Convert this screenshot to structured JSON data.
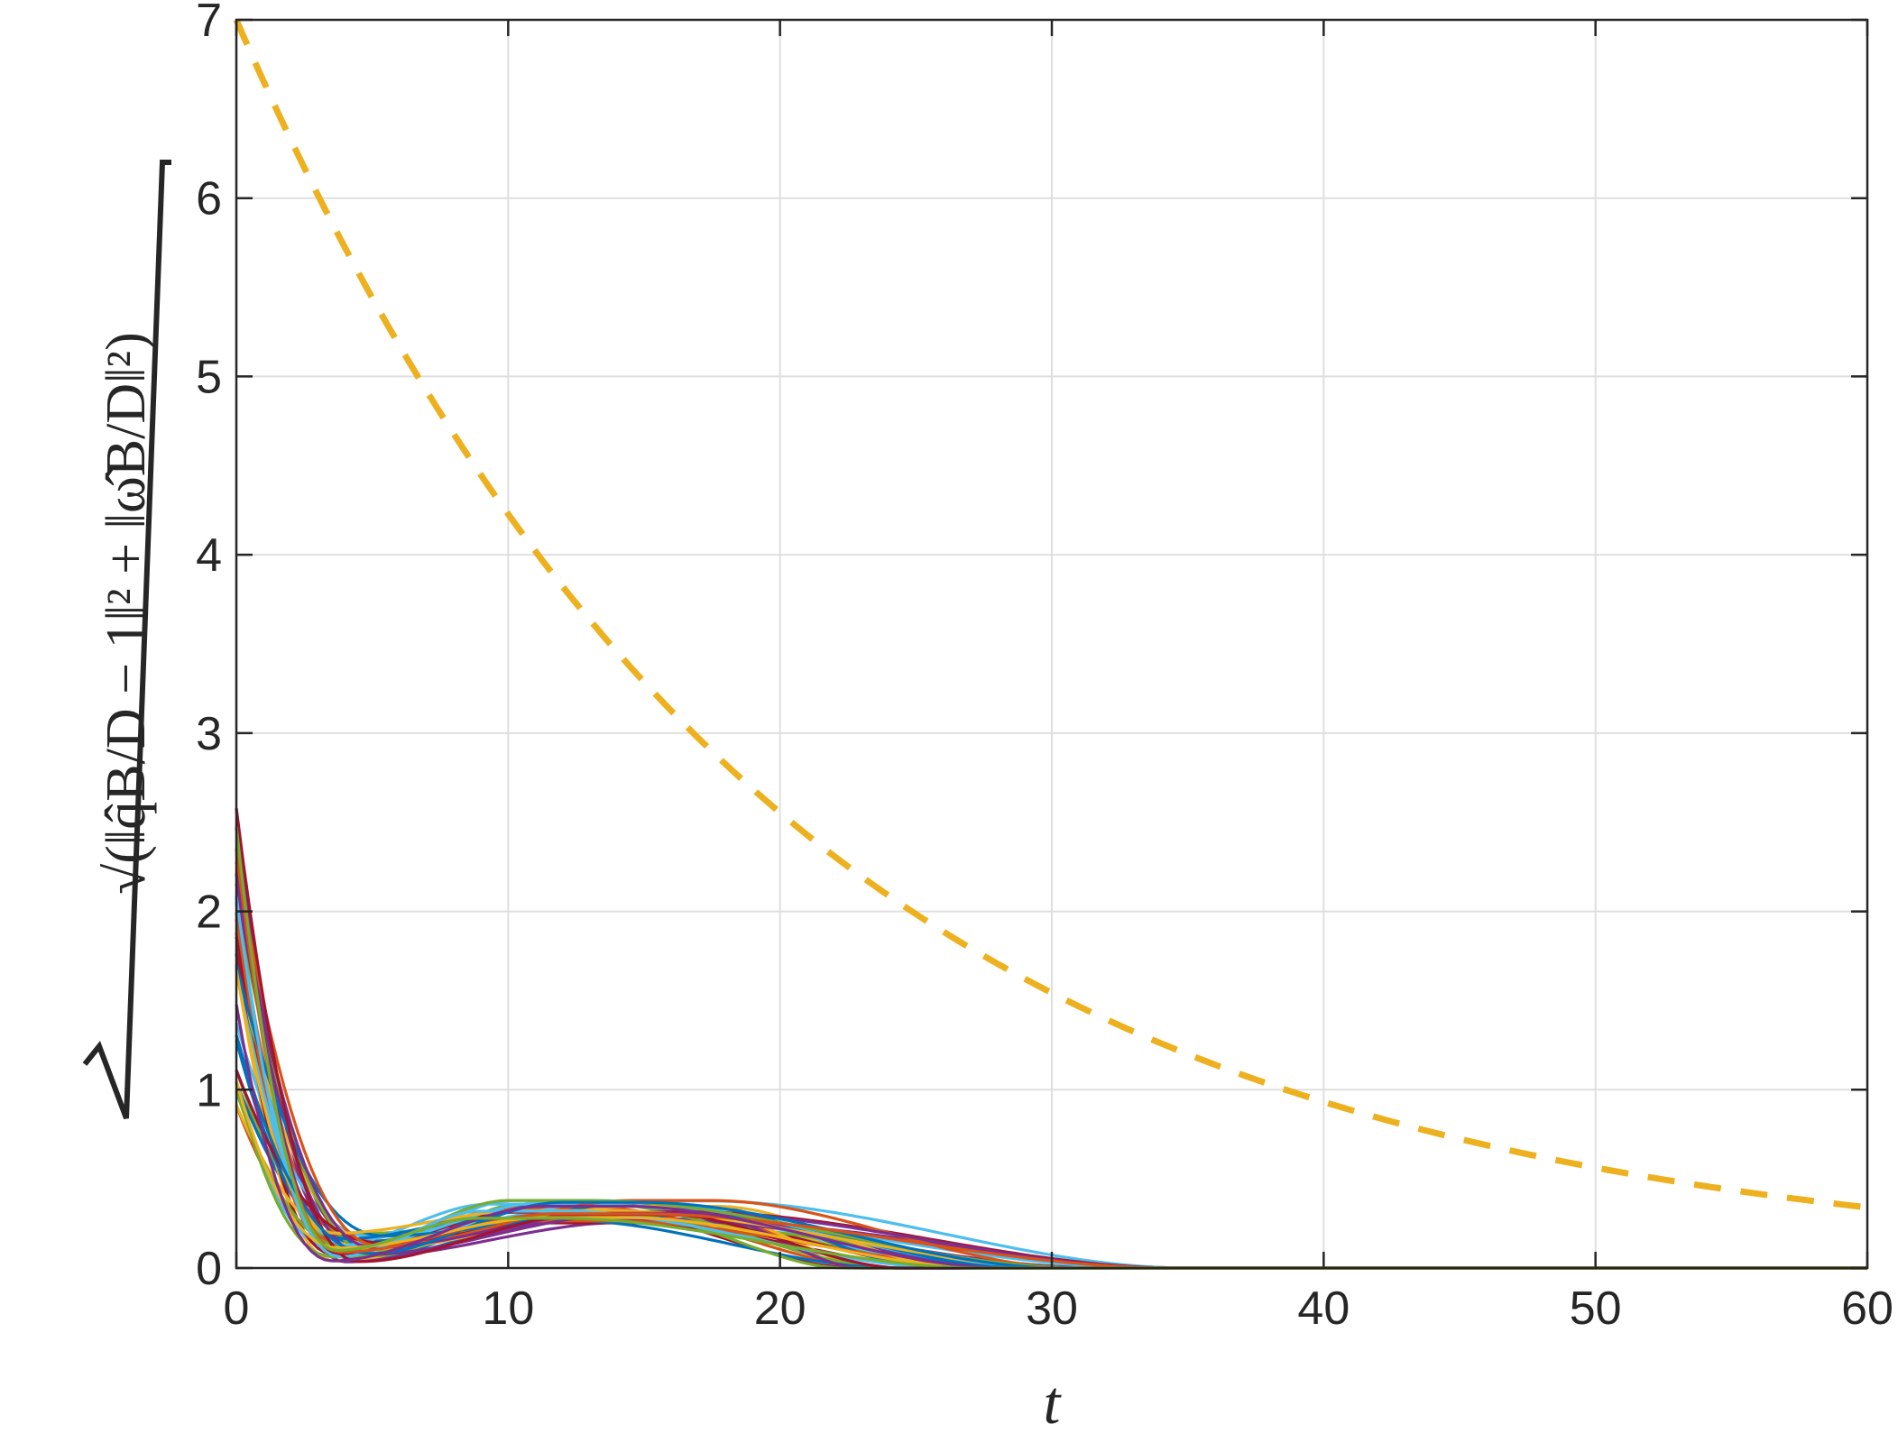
{
  "chart_data": {
    "type": "line",
    "xlabel": "t",
    "ylabel": "√(‖q̂B/D − 1‖² + ‖ω̂B/D‖²)",
    "xlim": [
      0,
      60
    ],
    "ylim": [
      0,
      7
    ],
    "xticks": [
      "0",
      "10",
      "20",
      "30",
      "40",
      "50",
      "60"
    ],
    "yticks": [
      "0",
      "1",
      "2",
      "3",
      "4",
      "5",
      "6",
      "7"
    ],
    "grid": true,
    "bound": {
      "style": "dashed",
      "color": "#EDB120",
      "x": [
        0,
        5,
        10,
        15,
        20,
        25,
        30,
        35,
        40,
        45,
        50,
        55,
        60
      ],
      "y": [
        7.0,
        5.4,
        4.25,
        3.3,
        2.6,
        2.05,
        1.6,
        1.25,
        0.95,
        0.74,
        0.57,
        0.45,
        0.34
      ]
    },
    "trajectories": {
      "count": 40,
      "start_range": [
        0.9,
        2.65
      ],
      "dip_time_range": [
        3.5,
        5.5
      ],
      "dip_value_range": [
        0.03,
        0.2
      ],
      "hump_peak_range": [
        0.25,
        0.38
      ],
      "settle_time_range": [
        22,
        36
      ],
      "final_value": 0,
      "colors": [
        "#0072BD",
        "#D95319",
        "#EDB120",
        "#7E2F8E",
        "#77AC30",
        "#4DBEEE",
        "#A2142F"
      ]
    }
  }
}
